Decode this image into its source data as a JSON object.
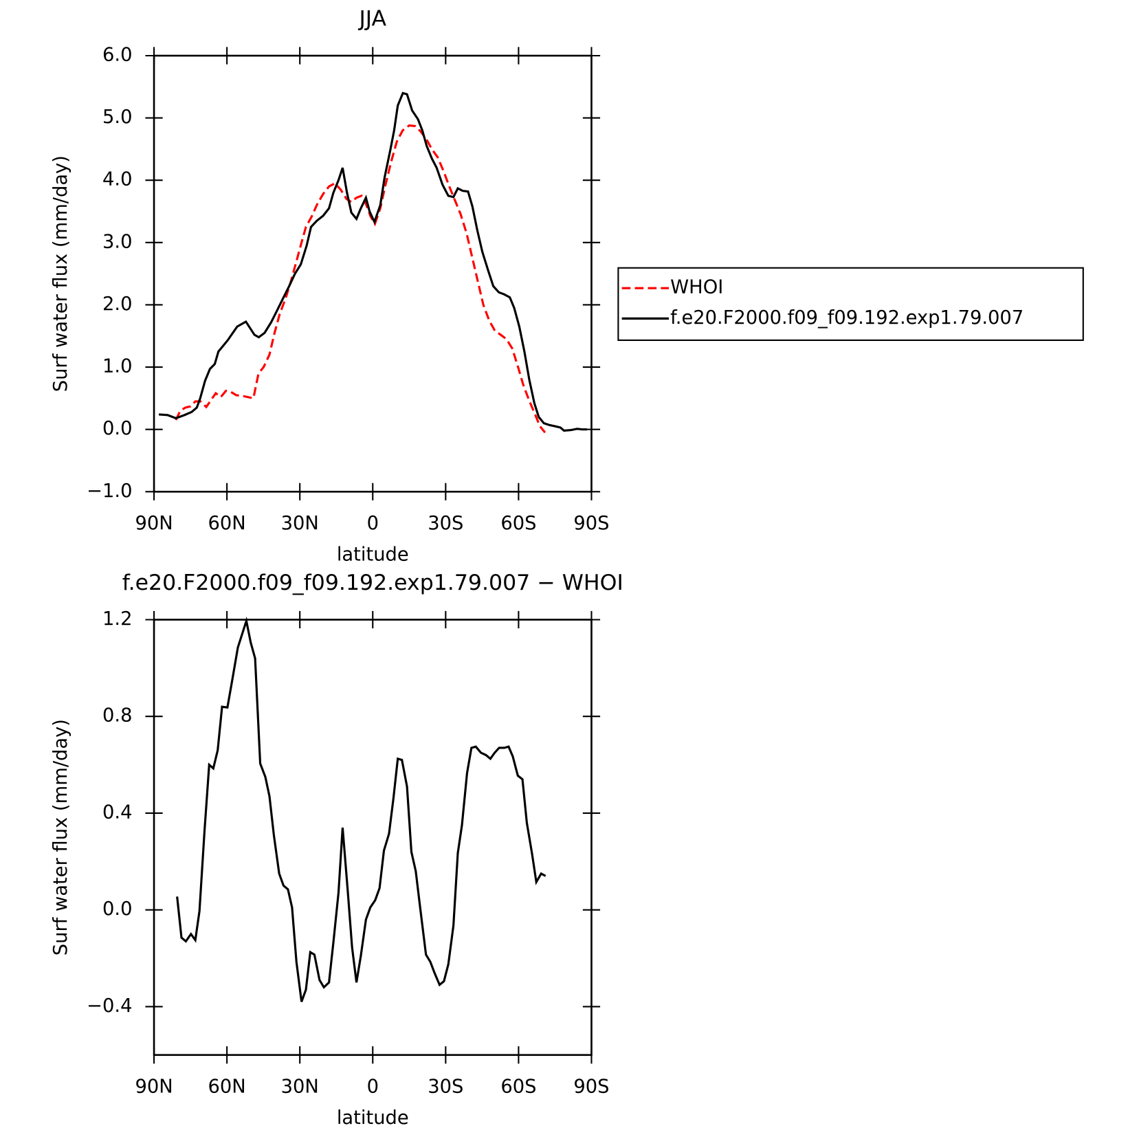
{
  "chart_data": [
    {
      "type": "line",
      "title": "JJA",
      "xlabel": "latitude",
      "ylabel": "Surf water flux (mm/day)",
      "xlim": [
        90,
        -90
      ],
      "xticks": [
        {
          "value": 90,
          "label": "90N"
        },
        {
          "value": 60,
          "label": "60N"
        },
        {
          "value": 30,
          "label": "30N"
        },
        0,
        {
          "value": -30,
          "label": "30S"
        },
        {
          "value": -60,
          "label": "60S"
        },
        {
          "value": -90,
          "label": "90S"
        }
      ],
      "ylim": [
        -1,
        6
      ],
      "yticks": [
        {
          "value": -1,
          "label": "−1.0"
        },
        {
          "value": 0,
          "label": "0.0"
        },
        {
          "value": 1,
          "label": "1.0"
        },
        {
          "value": 2,
          "label": "2.0"
        },
        {
          "value": 3,
          "label": "3.0"
        },
        {
          "value": 4,
          "label": "4.0"
        },
        {
          "value": 5,
          "label": "5.0"
        },
        {
          "value": 6,
          "label": "6.0"
        }
      ],
      "legend": "right",
      "series": [
        {
          "name": "WHOI",
          "color": "#ff0000",
          "linestyle": "dashed",
          "x": [
            81,
            79.2,
            77.1,
            75,
            73,
            70.9,
            68.5,
            66.4,
            64.6,
            62.5,
            60.4,
            58.3,
            56.2,
            52.7,
            49.1,
            47,
            44.9,
            42.5,
            40.4,
            38.3,
            35.9,
            33.5,
            31.4,
            29.3,
            27.5,
            25.1,
            22.8,
            20.4,
            18,
            15.6,
            13.2,
            10.8,
            8.8,
            6.7,
            4.6,
            2.8,
            0.9,
            -0.9,
            -3.1,
            -5.2,
            -7.6,
            -9.9,
            -12.3,
            -15,
            -17.4,
            -19.8,
            -22.2,
            -24.3,
            -26.7,
            -29.1,
            -31.5,
            -33.8,
            -36.2,
            -38.6,
            -40.7,
            -43.1,
            -45.5,
            -47.9,
            -50.3,
            -52.6,
            -55,
            -57.4,
            -59.8,
            -61.9,
            -64.3,
            -66.7,
            -68.8,
            -70.9
          ],
          "values": [
            0.15,
            0.3,
            0.35,
            0.37,
            0.45,
            0.45,
            0.36,
            0.48,
            0.58,
            0.52,
            0.62,
            0.6,
            0.55,
            0.53,
            0.5,
            0.9,
            1.0,
            1.2,
            1.55,
            1.85,
            2.1,
            2.4,
            2.7,
            3.0,
            3.25,
            3.42,
            3.62,
            3.78,
            3.9,
            3.95,
            3.85,
            3.7,
            3.65,
            3.72,
            3.75,
            3.62,
            3.42,
            3.3,
            3.55,
            3.92,
            4.3,
            4.62,
            4.8,
            4.88,
            4.87,
            4.78,
            4.65,
            4.5,
            4.37,
            4.15,
            3.9,
            3.68,
            3.45,
            3.15,
            2.8,
            2.4,
            2.0,
            1.75,
            1.58,
            1.52,
            1.45,
            1.3,
            1.0,
            0.72,
            0.47,
            0.25,
            0.05,
            -0.05
          ]
        },
        {
          "name": "f.e20.F2000.f09_f09.192.exp1.79.007",
          "color": "#000000",
          "linestyle": "solid",
          "x": [
            88,
            84.4,
            81,
            77.5,
            74.5,
            72.4,
            71,
            69,
            67,
            65,
            63.5,
            59.7,
            55.8,
            52.2,
            48.7,
            46.9,
            44.5,
            41.8,
            39.1,
            36.7,
            34.4,
            32,
            29.6,
            27.2,
            25.4,
            23,
            20.4,
            18,
            16.2,
            14.1,
            12.4,
            10.6,
            8.8,
            6.7,
            4.9,
            2.8,
            1.3,
            -0.7,
            -3.1,
            -4.9,
            -7.3,
            -8.8,
            -10.3,
            -12.4,
            -14.1,
            -16.2,
            -18.6,
            -20.4,
            -22.2,
            -24.3,
            -26.3,
            -28.7,
            -31.1,
            -33.2,
            -35,
            -37,
            -39.2,
            -41,
            -43,
            -45.1,
            -47.5,
            -49.6,
            -51.9,
            -54,
            -56.4,
            -58.2,
            -60.3,
            -62.4,
            -64.4,
            -66.5,
            -68.3,
            -70.4,
            -72.7,
            -75.1,
            -77.2,
            -78.7,
            -81.7,
            -84.1,
            -86.1,
            -88.2
          ],
          "values": [
            0.24,
            0.23,
            0.18,
            0.23,
            0.28,
            0.35,
            0.5,
            0.78,
            0.97,
            1.05,
            1.25,
            1.43,
            1.65,
            1.73,
            1.52,
            1.48,
            1.55,
            1.72,
            1.93,
            2.12,
            2.3,
            2.5,
            2.65,
            2.95,
            3.25,
            3.35,
            3.43,
            3.55,
            3.8,
            4.0,
            4.2,
            3.8,
            3.48,
            3.38,
            3.55,
            3.72,
            3.5,
            3.33,
            3.6,
            4.05,
            4.5,
            4.8,
            5.2,
            5.4,
            5.38,
            5.12,
            4.98,
            4.8,
            4.55,
            4.35,
            4.2,
            3.93,
            3.75,
            3.73,
            3.87,
            3.83,
            3.82,
            3.58,
            3.2,
            2.85,
            2.55,
            2.3,
            2.2,
            2.17,
            2.12,
            1.95,
            1.65,
            1.25,
            0.8,
            0.42,
            0.2,
            0.1,
            0.07,
            0.05,
            0.03,
            -0.02,
            -0.01,
            0.01,
            0,
            0
          ]
        }
      ]
    },
    {
      "type": "line",
      "title": "f.e20.F2000.f09_f09.192.exp1.79.007 − WHOI",
      "xlabel": "latitude",
      "ylabel": "Surf water flux (mm/day)",
      "xlim": [
        90,
        -90
      ],
      "xticks": [
        {
          "value": 90,
          "label": "90N"
        },
        {
          "value": 60,
          "label": "60N"
        },
        {
          "value": 30,
          "label": "30N"
        },
        0,
        {
          "value": -30,
          "label": "30S"
        },
        {
          "value": -60,
          "label": "60S"
        },
        {
          "value": -90,
          "label": "90S"
        }
      ],
      "ylim": [
        -0.6,
        1.2
      ],
      "yticks": [
        {
          "value": -0.4,
          "label": "−0.4"
        },
        {
          "value": 0,
          "label": "0.0"
        },
        0.4,
        0.8,
        1.2
      ],
      "color": "#000000",
      "x": [
        80.5,
        78.7,
        76.9,
        74.8,
        73.0,
        71.3,
        69.2,
        67.3,
        65.6,
        63.8,
        62.0,
        59.8,
        57.9,
        55.5,
        52.0,
        50.2,
        48.4,
        46.3,
        44.2,
        42.5,
        40.7,
        38.5,
        36.7,
        34.9,
        33.2,
        31.4,
        29.3,
        27.5,
        25.7,
        24.0,
        21.9,
        20.1,
        18.0,
        16.2,
        14.1,
        12.4,
        10.3,
        8.5,
        6.7,
        4.9,
        2.8,
        1.0,
        -1.0,
        -2.8,
        -4.6,
        -6.7,
        -8.5,
        -10.3,
        -12.0,
        -14.1,
        -15.9,
        -17.7,
        -19.5,
        -21.9,
        -23.7,
        -25.4,
        -27.5,
        -29.3,
        -31.1,
        -33.2,
        -35.0,
        -36.7,
        -38.8,
        -40.6,
        -42.4,
        -44.5,
        -46.6,
        -48.4,
        -50.2,
        -52.0,
        -54.1,
        -55.9,
        -57.6,
        -59.7,
        -61.6,
        -63.4,
        -65.5,
        -67.3,
        -69.3,
        -71.1
      ],
      "values": [
        0.055,
        -0.115,
        -0.13,
        -0.1,
        -0.125,
        -0.005,
        0.33,
        0.6,
        0.585,
        0.66,
        0.84,
        0.837,
        0.945,
        1.085,
        1.195,
        1.105,
        1.04,
        0.605,
        0.55,
        0.47,
        0.31,
        0.15,
        0.1,
        0.085,
        0.01,
        -0.215,
        -0.38,
        -0.33,
        -0.175,
        -0.185,
        -0.29,
        -0.32,
        -0.3,
        -0.135,
        0.07,
        0.34,
        0.08,
        -0.155,
        -0.3,
        -0.19,
        -0.04,
        0.01,
        0.04,
        0.09,
        0.245,
        0.315,
        0.46,
        0.625,
        0.62,
        0.51,
        0.24,
        0.16,
        0.01,
        -0.185,
        -0.215,
        -0.26,
        -0.31,
        -0.295,
        -0.225,
        -0.065,
        0.235,
        0.35,
        0.565,
        0.67,
        0.675,
        0.65,
        0.64,
        0.625,
        0.65,
        0.67,
        0.67,
        0.675,
        0.635,
        0.555,
        0.54,
        0.36,
        0.235,
        0.115,
        0.15,
        0.14
      ]
    }
  ]
}
